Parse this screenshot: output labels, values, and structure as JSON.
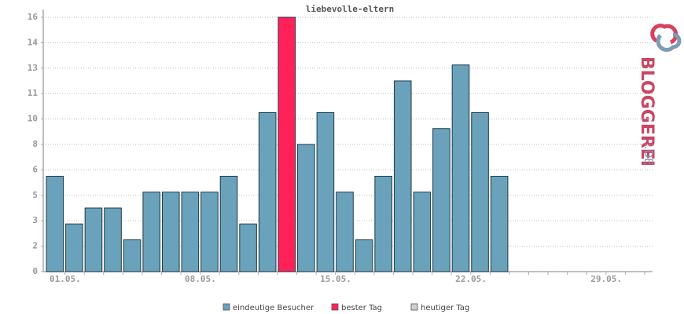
{
  "chart_data": {
    "type": "bar",
    "title": "liebevolle-eltern",
    "categories": [
      "01.05.",
      null,
      null,
      null,
      null,
      null,
      null,
      "08.05.",
      null,
      null,
      null,
      null,
      null,
      null,
      "15.05.",
      null,
      null,
      null,
      null,
      null,
      null,
      "22.05.",
      null,
      null,
      null,
      null,
      null,
      null,
      "29.05.",
      null,
      null
    ],
    "values": [
      6,
      3,
      4,
      4,
      2,
      5,
      5,
      5,
      5,
      6,
      3,
      10,
      16,
      8,
      10,
      5,
      2,
      6,
      12,
      5,
      9,
      13,
      10,
      6,
      null,
      null,
      null,
      null,
      null,
      null,
      null
    ],
    "colors": [
      "#6aa2bb",
      "#6aa2bb",
      "#6aa2bb",
      "#6aa2bb",
      "#6aa2bb",
      "#6aa2bb",
      "#6aa2bb",
      "#6aa2bb",
      "#6aa2bb",
      "#6aa2bb",
      "#6aa2bb",
      "#6aa2bb",
      "#ff2158",
      "#6aa2bb",
      "#6aa2bb",
      "#6aa2bb",
      "#6aa2bb",
      "#6aa2bb",
      "#6aa2bb",
      "#6aa2bb",
      "#6aa2bb",
      "#6aa2bb",
      "#6aa2bb",
      "#6aa2bb",
      "#6aa2bb",
      "#6aa2bb",
      "#6aa2bb",
      "#6aa2bb",
      "#6aa2bb",
      "#6aa2bb",
      "#6aa2bb"
    ],
    "ylim": [
      0,
      16
    ],
    "yticks": [
      0,
      {
        "value": 1.6,
        "label": "2"
      },
      {
        "value": 3.2,
        "label": "3"
      },
      {
        "value": 4.8,
        "label": "5"
      },
      {
        "value": 6.4,
        "label": "6"
      },
      8,
      {
        "value": 9.6,
        "label": "10"
      },
      {
        "value": 11.2,
        "label": "11"
      },
      {
        "value": 12.8,
        "label": "13"
      },
      {
        "value": 14.4,
        "label": "14"
      },
      16
    ],
    "grid": true,
    "legend": [
      {
        "name": "eindeutige Besucher",
        "color": "#6aa2bb"
      },
      {
        "name": "bester Tag",
        "color": "#ff2158"
      },
      {
        "name": "heutiger Tag",
        "color": "#d0d0d0"
      }
    ]
  },
  "logo": {
    "text": "BLOGGEREI",
    "suffix": ".DE"
  }
}
